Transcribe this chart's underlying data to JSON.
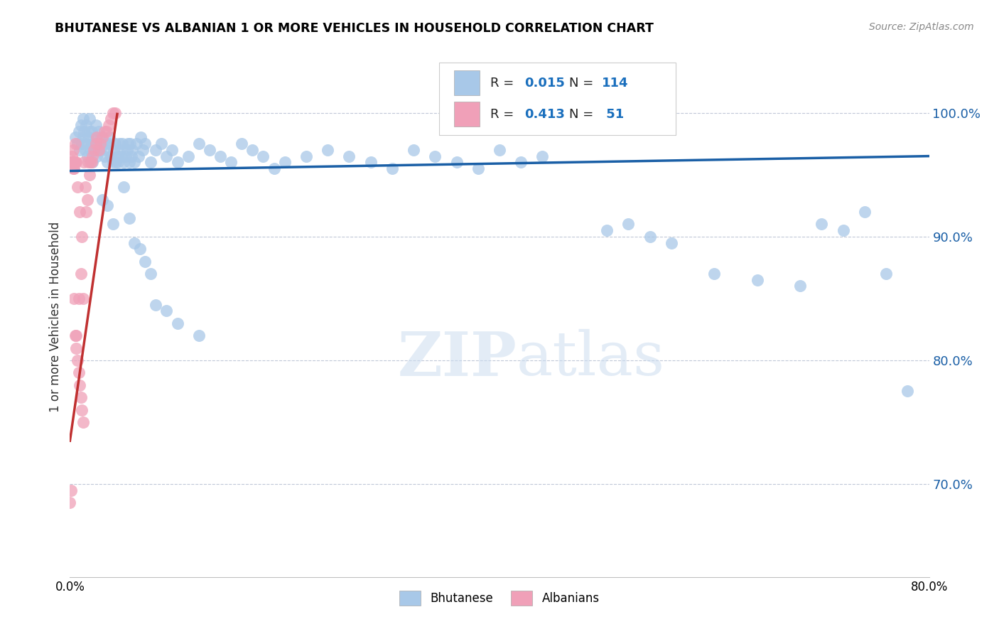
{
  "title": "BHUTANESE VS ALBANIAN 1 OR MORE VEHICLES IN HOUSEHOLD CORRELATION CHART",
  "source": "Source: ZipAtlas.com",
  "ylabel": "1 or more Vehicles in Household",
  "yticks": [
    0.7,
    0.8,
    0.9,
    1.0
  ],
  "ytick_labels": [
    "70.0%",
    "80.0%",
    "90.0%",
    "100.0%"
  ],
  "xlim": [
    0.0,
    0.8
  ],
  "ylim": [
    0.625,
    1.045
  ],
  "legend_blue_R": "0.015",
  "legend_blue_N": "114",
  "legend_pink_R": "0.413",
  "legend_pink_N": " 51",
  "blue_color": "#a8c8e8",
  "pink_color": "#f0a0b8",
  "blue_line_color": "#1a5fa6",
  "pink_line_color": "#c03030",
  "legend_R_color": "#1a6fbd",
  "watermark_color": "#ccddf0",
  "blue_scatter_x": [
    0.005,
    0.007,
    0.008,
    0.009,
    0.01,
    0.011,
    0.012,
    0.012,
    0.013,
    0.014,
    0.015,
    0.015,
    0.016,
    0.017,
    0.018,
    0.018,
    0.019,
    0.02,
    0.02,
    0.021,
    0.022,
    0.023,
    0.024,
    0.024,
    0.025,
    0.026,
    0.027,
    0.028,
    0.029,
    0.03,
    0.032,
    0.033,
    0.034,
    0.035,
    0.036,
    0.037,
    0.038,
    0.04,
    0.041,
    0.042,
    0.043,
    0.045,
    0.046,
    0.047,
    0.048,
    0.049,
    0.05,
    0.052,
    0.053,
    0.054,
    0.055,
    0.056,
    0.057,
    0.058,
    0.06,
    0.062,
    0.064,
    0.066,
    0.068,
    0.07,
    0.075,
    0.08,
    0.085,
    0.09,
    0.095,
    0.1,
    0.11,
    0.12,
    0.13,
    0.14,
    0.15,
    0.16,
    0.17,
    0.18,
    0.19,
    0.2,
    0.22,
    0.24,
    0.26,
    0.28,
    0.3,
    0.32,
    0.34,
    0.36,
    0.38,
    0.4,
    0.42,
    0.44,
    0.5,
    0.52,
    0.54,
    0.56,
    0.6,
    0.64,
    0.68,
    0.7,
    0.72,
    0.74,
    0.76,
    0.78,
    0.03,
    0.035,
    0.04,
    0.045,
    0.05,
    0.055,
    0.06,
    0.065,
    0.07,
    0.075,
    0.08,
    0.09,
    0.1,
    0.12
  ],
  "blue_scatter_y": [
    0.98,
    0.975,
    0.985,
    0.97,
    0.99,
    0.975,
    0.98,
    0.995,
    0.985,
    0.97,
    0.975,
    0.99,
    0.965,
    0.98,
    0.985,
    0.995,
    0.97,
    0.975,
    0.985,
    0.96,
    0.975,
    0.97,
    0.98,
    0.99,
    0.965,
    0.975,
    0.985,
    0.97,
    0.98,
    0.975,
    0.965,
    0.975,
    0.97,
    0.96,
    0.975,
    0.98,
    0.965,
    0.96,
    0.97,
    0.975,
    0.96,
    0.965,
    0.975,
    0.97,
    0.965,
    0.975,
    0.96,
    0.965,
    0.97,
    0.975,
    0.96,
    0.975,
    0.965,
    0.97,
    0.96,
    0.975,
    0.965,
    0.98,
    0.97,
    0.975,
    0.96,
    0.97,
    0.975,
    0.965,
    0.97,
    0.96,
    0.965,
    0.975,
    0.97,
    0.965,
    0.96,
    0.975,
    0.97,
    0.965,
    0.955,
    0.96,
    0.965,
    0.97,
    0.965,
    0.96,
    0.955,
    0.97,
    0.965,
    0.96,
    0.955,
    0.97,
    0.96,
    0.965,
    0.905,
    0.91,
    0.9,
    0.895,
    0.87,
    0.865,
    0.86,
    0.91,
    0.905,
    0.92,
    0.87,
    0.775,
    0.93,
    0.925,
    0.91,
    0.96,
    0.94,
    0.915,
    0.895,
    0.89,
    0.88,
    0.87,
    0.845,
    0.84,
    0.83,
    0.82
  ],
  "pink_scatter_x": [
    0.0,
    0.001,
    0.001,
    0.002,
    0.002,
    0.002,
    0.003,
    0.003,
    0.003,
    0.004,
    0.004,
    0.004,
    0.005,
    0.005,
    0.005,
    0.006,
    0.006,
    0.006,
    0.007,
    0.007,
    0.008,
    0.008,
    0.009,
    0.009,
    0.01,
    0.01,
    0.011,
    0.011,
    0.012,
    0.012,
    0.013,
    0.014,
    0.015,
    0.016,
    0.017,
    0.018,
    0.019,
    0.02,
    0.021,
    0.022,
    0.024,
    0.025,
    0.027,
    0.028,
    0.03,
    0.032,
    0.034,
    0.036,
    0.038,
    0.04,
    0.042
  ],
  "pink_scatter_y": [
    0.685,
    0.695,
    0.96,
    0.96,
    0.96,
    0.965,
    0.955,
    0.97,
    0.96,
    0.955,
    0.85,
    0.96,
    0.82,
    0.96,
    0.975,
    0.81,
    0.82,
    0.96,
    0.8,
    0.94,
    0.79,
    0.85,
    0.78,
    0.92,
    0.77,
    0.87,
    0.76,
    0.9,
    0.75,
    0.85,
    0.96,
    0.94,
    0.92,
    0.93,
    0.96,
    0.95,
    0.96,
    0.96,
    0.965,
    0.97,
    0.975,
    0.98,
    0.97,
    0.975,
    0.98,
    0.985,
    0.985,
    0.99,
    0.995,
    1.0,
    1.0
  ]
}
